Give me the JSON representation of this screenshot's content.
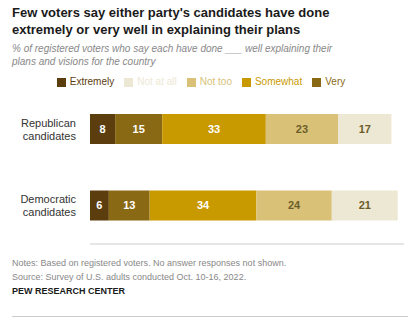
{
  "chart_data": {
    "type": "bar",
    "orientation": "horizontal",
    "stacked": true,
    "data_labels": true,
    "grid": false,
    "legend": "top",
    "tick_labels": "y",
    "title": "Few voters say either party's candidates have done\nextremely or very well in explaining their plans",
    "subtitle": "% of registered voters who say each have done ___ well explaining their\nplans and visions for the country",
    "categories": [
      "Republican\ncandidates",
      "Democratic\ncandidates"
    ],
    "series": [
      {
        "name": "Extremely",
        "color": "#5c3d0e",
        "values": [
          8,
          6
        ]
      },
      {
        "name": "Very",
        "color": "#8a6914",
        "values": [
          15,
          13
        ]
      },
      {
        "name": "Somewhat",
        "color": "#c99a00",
        "values": [
          33,
          34
        ]
      },
      {
        "name": "Not too",
        "color": "#d9c278",
        "values": [
          23,
          24
        ]
      },
      {
        "name": "Not at all",
        "color": "#ede8d4",
        "values": [
          17,
          21
        ]
      }
    ],
    "xlim": [
      0,
      100
    ],
    "annotations": [
      "Notes: Based on registered voters. No answer responses not shown.",
      "Source: Survey of U.S. adults conducted Oct. 10-16, 2022.",
      "PEW RESEARCH CENTER"
    ]
  }
}
